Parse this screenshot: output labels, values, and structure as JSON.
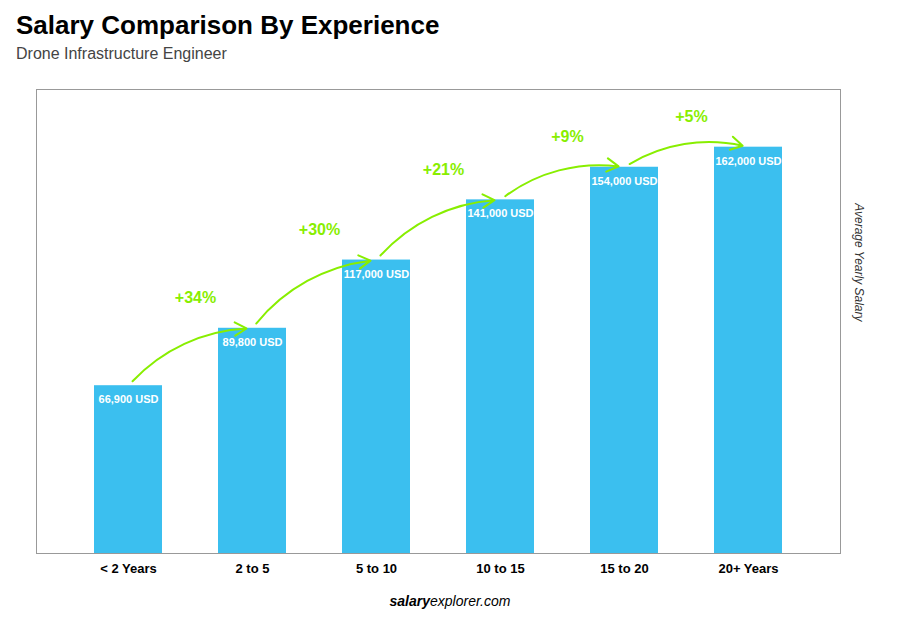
{
  "chart_data": {
    "type": "bar",
    "title": "Salary Comparison By Experience",
    "subtitle": "Drone Infrastructure Engineer",
    "ylabel": "Average Yearly Salary",
    "categories": [
      "< 2 Years",
      "2 to 5",
      "5 to 10",
      "10 to 15",
      "15 to 20",
      "20+ Years"
    ],
    "values": [
      66900,
      89800,
      117000,
      141000,
      154000,
      162000
    ],
    "value_labels": [
      "66,900 USD",
      "89,800 USD",
      "117,000 USD",
      "141,000 USD",
      "154,000 USD",
      "162,000 USD"
    ],
    "data_labels": true,
    "color": "#3BBFEF",
    "ylim": [
      0,
      185000
    ],
    "tick_labels": "x",
    "grid": false,
    "annotations": [
      {
        "text": "+34%",
        "from": "< 2 Years",
        "to": "2 to 5",
        "color": "#88ee00"
      },
      {
        "text": "+30%",
        "from": "2 to 5",
        "to": "5 to 10",
        "color": "#88ee00"
      },
      {
        "text": "+21%",
        "from": "5 to 10",
        "to": "10 to 15",
        "color": "#88ee00"
      },
      {
        "text": "+9%",
        "from": "10 to 15",
        "to": "15 to 20",
        "color": "#88ee00"
      },
      {
        "text": "+5%",
        "from": "15 to 20",
        "to": "20+ Years",
        "color": "#88ee00"
      }
    ],
    "caption": [
      "salary",
      "explorer.com"
    ]
  }
}
